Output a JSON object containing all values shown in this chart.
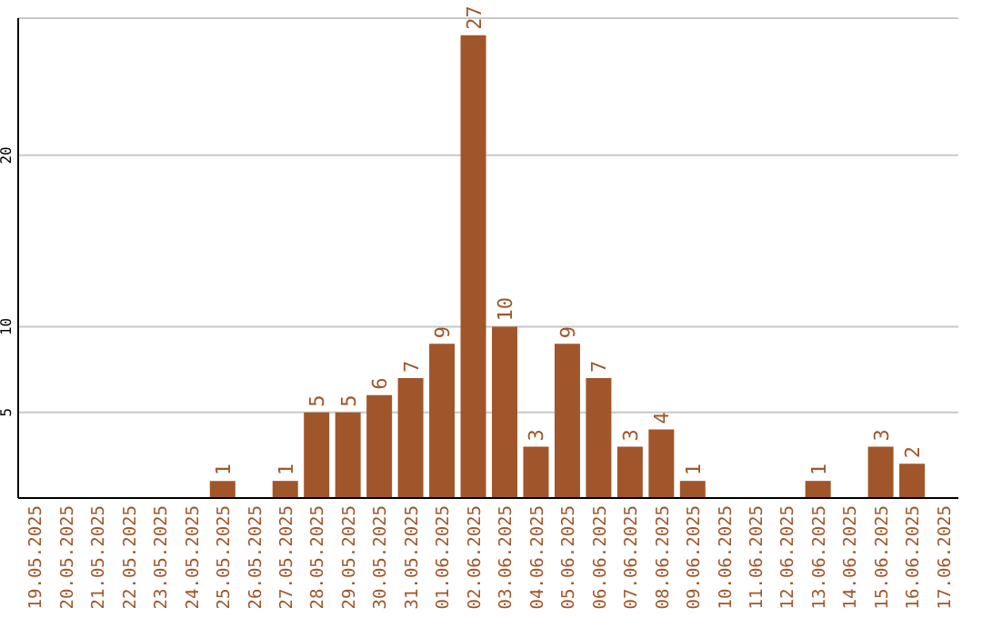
{
  "chart_data": {
    "type": "bar",
    "categories": [
      "19.05.2025",
      "20.05.2025",
      "21.05.2025",
      "22.05.2025",
      "23.05.2025",
      "24.05.2025",
      "25.05.2025",
      "26.05.2025",
      "27.05.2025",
      "28.05.2025",
      "29.05.2025",
      "30.05.2025",
      "31.05.2025",
      "01.06.2025",
      "02.06.2025",
      "03.06.2025",
      "04.06.2025",
      "05.06.2025",
      "06.06.2025",
      "07.06.2025",
      "08.06.2025",
      "09.06.2025",
      "10.06.2025",
      "11.06.2025",
      "12.06.2025",
      "13.06.2025",
      "14.06.2025",
      "15.06.2025",
      "16.06.2025",
      "17.06.2025"
    ],
    "values": [
      0,
      0,
      0,
      0,
      0,
      0,
      1,
      0,
      1,
      5,
      5,
      6,
      7,
      9,
      27,
      10,
      3,
      9,
      7,
      3,
      4,
      1,
      0,
      0,
      0,
      1,
      0,
      3,
      2,
      0
    ],
    "value_labels": [
      null,
      null,
      null,
      null,
      null,
      null,
      "1",
      null,
      "1",
      "5",
      "5",
      "6",
      "7",
      "9",
      "27",
      "10",
      "3",
      "9",
      "7",
      "3",
      "4",
      "1",
      null,
      null,
      null,
      "1",
      null,
      "3",
      "2",
      null
    ],
    "color": "#a0562a",
    "ylim": [
      0,
      28
    ],
    "yticks": [
      5,
      10,
      20
    ],
    "grid": "y",
    "legend": false
  }
}
